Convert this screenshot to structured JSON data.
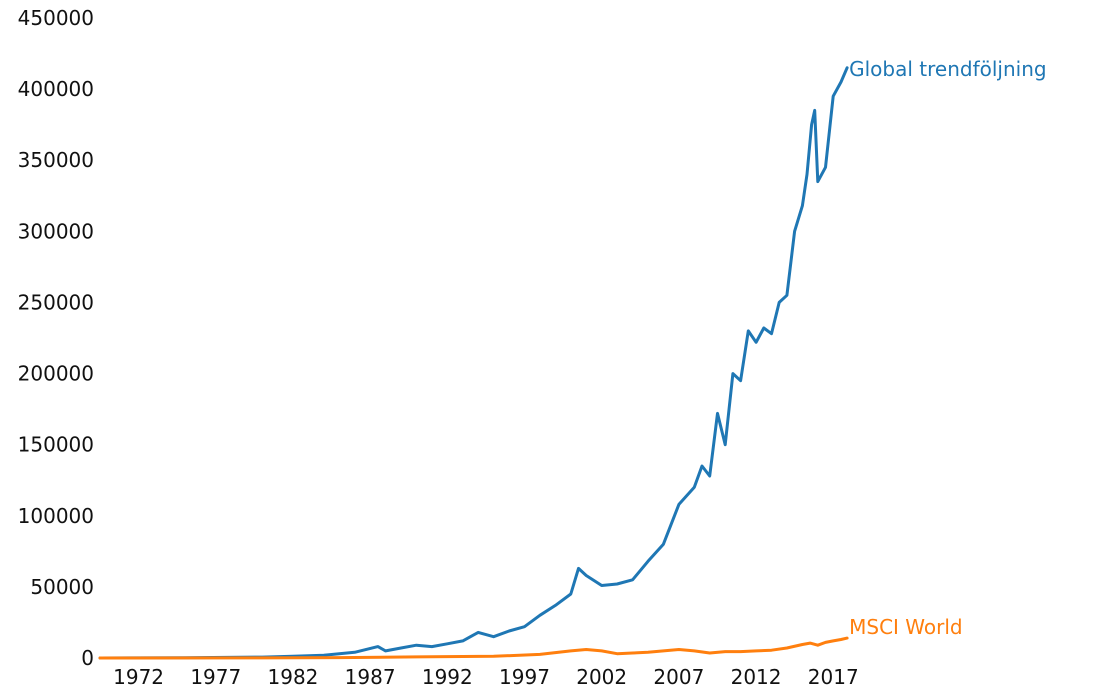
{
  "chart_data": {
    "type": "line",
    "title": "",
    "xlabel": "",
    "ylabel": "",
    "xlim": [
      1969.5,
      2019.9
    ],
    "ylim": [
      0,
      450000
    ],
    "grid": false,
    "legend": "none",
    "y_ticks": [
      0,
      50000,
      100000,
      150000,
      200000,
      250000,
      300000,
      350000,
      400000,
      450000
    ],
    "y_tick_labels": [
      "0",
      "50000",
      "100000",
      "150000",
      "200000",
      "250000",
      "300000",
      "350000",
      "400000",
      "450000"
    ],
    "x_ticks": [
      1972,
      1977,
      1982,
      1987,
      1992,
      1997,
      2002,
      2007,
      2012,
      2017
    ],
    "x_tick_labels": [
      "1972",
      "1977",
      "1982",
      "1987",
      "1992",
      "1997",
      "2002",
      "2007",
      "2012",
      "2017"
    ],
    "series": [
      {
        "name": "Global trendföljning",
        "color": "#1f77b4",
        "x": [
          1969.5,
          1975,
          1980,
          1982,
          1984,
          1986,
          1987.5,
          1988,
          1989,
          1990,
          1991,
          1992,
          1993,
          1994,
          1995,
          1996,
          1997,
          1998,
          1999,
          2000,
          2000.5,
          2001,
          2002,
          2003,
          2004,
          2005,
          2006,
          2007,
          2008,
          2008.5,
          2009,
          2009.5,
          2010,
          2010.5,
          2011,
          2011.5,
          2012,
          2012.5,
          2013,
          2013.5,
          2014,
          2014.5,
          2015,
          2015.3,
          2015.6,
          2015.8,
          2016,
          2016.5,
          2017,
          2017.5,
          2017.9
        ],
        "values": [
          0,
          200,
          600,
          1200,
          2000,
          4000,
          8000,
          5000,
          7000,
          9000,
          8000,
          10000,
          12000,
          18000,
          15000,
          19000,
          22000,
          30000,
          37000,
          45000,
          63000,
          58000,
          51000,
          52000,
          55000,
          68000,
          80000,
          108000,
          120000,
          135000,
          128000,
          172000,
          150000,
          200000,
          195000,
          230000,
          222000,
          232000,
          228000,
          250000,
          255000,
          300000,
          318000,
          340000,
          375000,
          385000,
          335000,
          345000,
          395000,
          405000,
          415000
        ]
      },
      {
        "name": "MSCI World",
        "color": "#ff7f0e",
        "x": [
          1969.5,
          1980,
          1985,
          1990,
          1995,
          1998,
          2000,
          2001,
          2002,
          2003,
          2004,
          2005,
          2006,
          2007,
          2008,
          2009,
          2010,
          2011,
          2012,
          2013,
          2014,
          2015,
          2015.5,
          2016,
          2016.5,
          2017,
          2017.5,
          2017.9
        ],
        "values": [
          0,
          100,
          300,
          800,
          1200,
          2500,
          5000,
          6000,
          5000,
          3000,
          3500,
          4000,
          5000,
          6000,
          5000,
          3500,
          4500,
          4500,
          5000,
          5500,
          7000,
          9500,
          10500,
          9000,
          11000,
          12000,
          13000,
          14000
        ]
      }
    ]
  }
}
